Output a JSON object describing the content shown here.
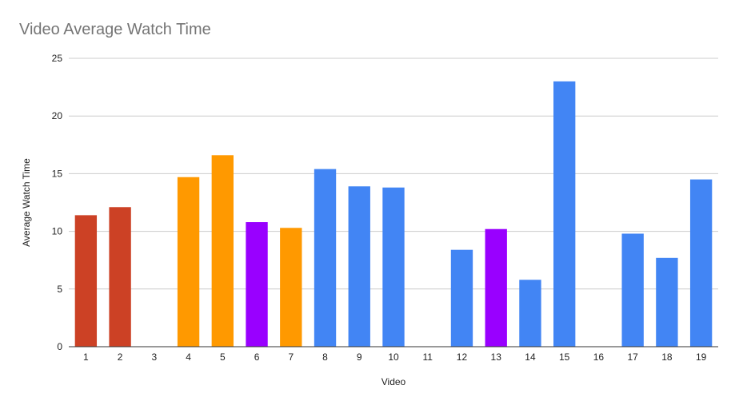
{
  "chart_data": {
    "type": "bar",
    "title": "Video Average Watch Time",
    "xlabel": "Video",
    "ylabel": "Average Watch Time",
    "ylim": [
      0,
      25
    ],
    "yticks": [
      "0",
      "5",
      "10",
      "15",
      "20",
      "25"
    ],
    "grid": true,
    "legend": "none",
    "categories": [
      "1",
      "2",
      "3",
      "4",
      "5",
      "6",
      "7",
      "8",
      "9",
      "10",
      "11",
      "12",
      "13",
      "14",
      "15",
      "16",
      "17",
      "18",
      "19"
    ],
    "values": [
      11.4,
      12.1,
      0,
      14.7,
      16.6,
      10.8,
      10.3,
      15.4,
      13.9,
      13.8,
      0,
      8.4,
      10.2,
      5.8,
      23.0,
      0,
      9.8,
      7.7,
      14.5
    ],
    "colors": [
      "#cc4125",
      "#cc4125",
      "#4285f4",
      "#ff9900",
      "#ff9900",
      "#9900ff",
      "#ff9900",
      "#4285f4",
      "#4285f4",
      "#4285f4",
      "#4285f4",
      "#4285f4",
      "#9900ff",
      "#4285f4",
      "#4285f4",
      "#4285f4",
      "#4285f4",
      "#4285f4",
      "#4285f4"
    ]
  }
}
